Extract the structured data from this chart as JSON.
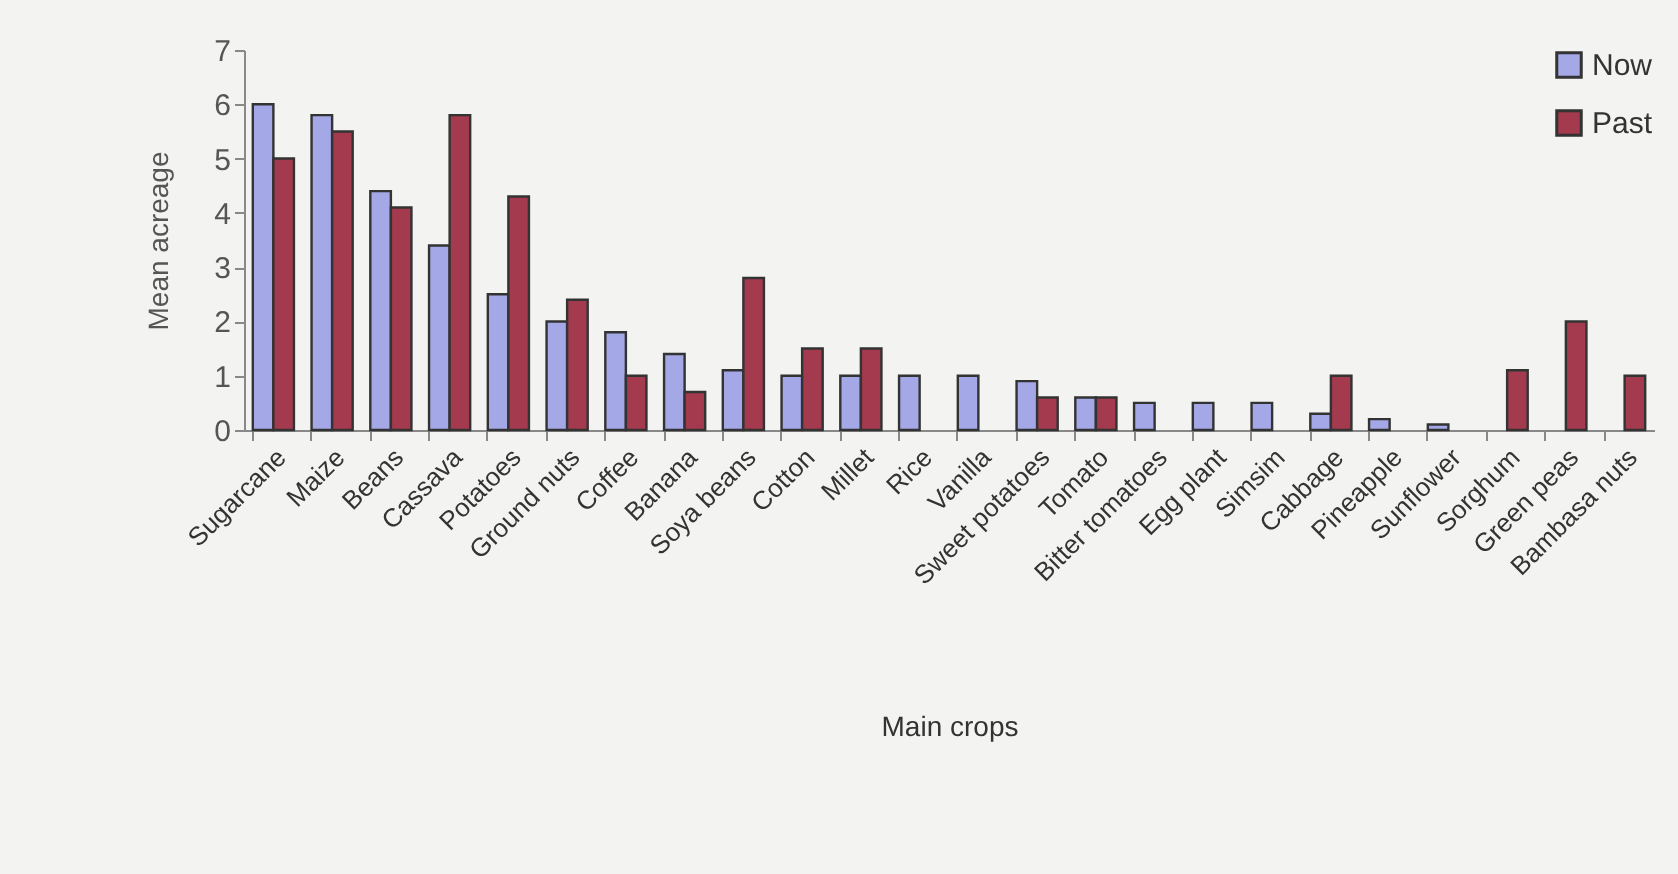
{
  "chart_data": {
    "type": "bar",
    "xlabel": "Main crops",
    "ylabel": "Mean acreage",
    "categories": [
      "Sugarcane",
      "Maize",
      "Beans",
      "Cassava",
      "Potatoes",
      "Ground nuts",
      "Coffee",
      "Banana",
      "Soya beans",
      "Cotton",
      "Millet",
      "Rice",
      "Vanilla",
      "Sweet potatoes",
      "Tomato",
      "Bitter tomatoes",
      "Egg plant",
      "Simsim",
      "Cabbage",
      "Pineapple",
      "Sunflower",
      "Sorghum",
      "Green peas",
      "Bambasa nuts"
    ],
    "series": [
      {
        "name": "Now",
        "color": "#a4a8e6",
        "values": [
          6.0,
          5.8,
          4.4,
          3.4,
          2.5,
          2.0,
          1.8,
          1.4,
          1.1,
          1.0,
          1.0,
          1.0,
          1.0,
          0.9,
          0.6,
          0.5,
          0.5,
          0.5,
          0.3,
          0.2,
          0.1,
          null,
          null,
          null
        ]
      },
      {
        "name": "Past",
        "color": "#a33a4e",
        "values": [
          5.0,
          5.5,
          4.1,
          5.8,
          4.3,
          2.4,
          1.0,
          0.7,
          2.8,
          1.5,
          1.5,
          null,
          null,
          0.6,
          0.6,
          null,
          null,
          null,
          1.0,
          null,
          null,
          1.1,
          2.0,
          1.0
        ]
      }
    ],
    "ylim": [
      0,
      7
    ],
    "yticks": [
      0,
      1,
      2,
      3,
      4,
      5,
      6,
      7
    ],
    "grid": false,
    "legend": "top right"
  }
}
